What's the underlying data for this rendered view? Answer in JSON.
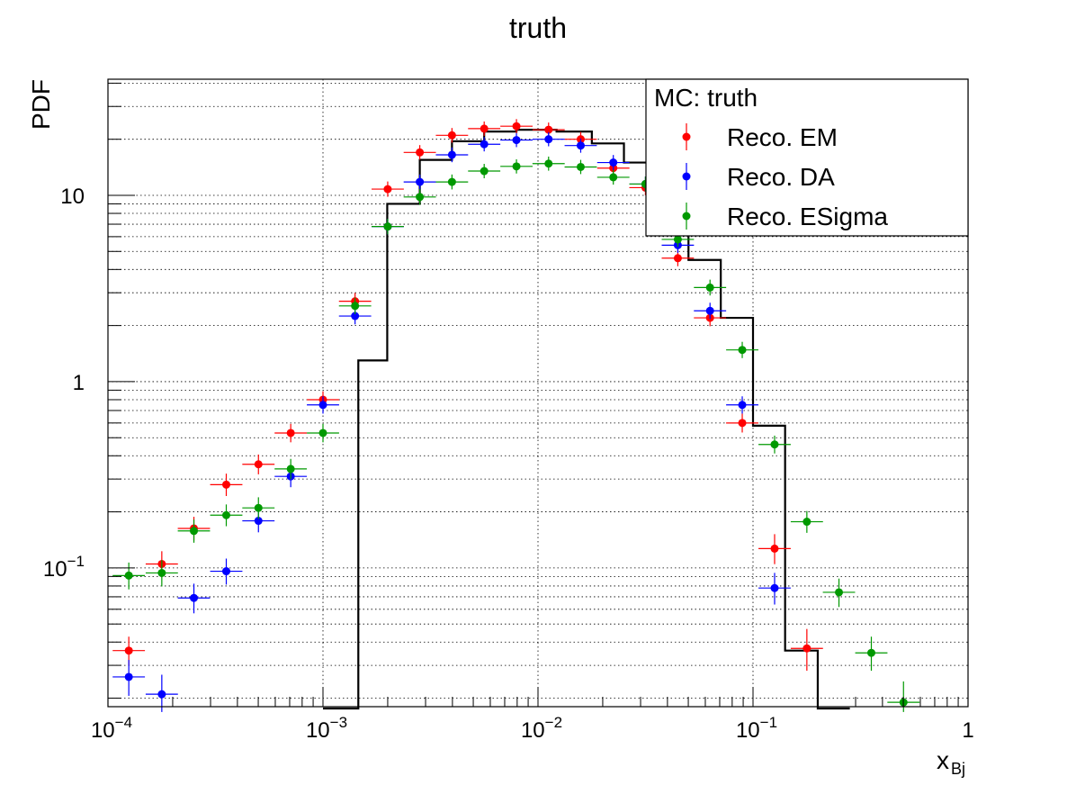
{
  "chart_data": {
    "type": "scatter",
    "title": "truth",
    "xlabel": "x",
    "xlabel_sub": "Bj",
    "ylabel": "PDF",
    "xscale": "log",
    "yscale": "log",
    "xlim": [
      0.0001,
      1
    ],
    "ylim": [
      0.018,
      42
    ],
    "grid": true,
    "legend": {
      "placement": "top-right",
      "header": "MC: truth",
      "entries": [
        "Reco. EM",
        "Reco. DA",
        "Reco. ESigma"
      ]
    },
    "x_ticks": [
      {
        "base": "10",
        "exp": "−4",
        "value": 0.0001
      },
      {
        "base": "10",
        "exp": "−3",
        "value": 0.001
      },
      {
        "base": "10",
        "exp": "−2",
        "value": 0.01
      },
      {
        "base": "10",
        "exp": "−1",
        "value": 0.1
      },
      {
        "base": "1",
        "exp": "",
        "value": 1
      }
    ],
    "y_ticks": [
      {
        "base": "10",
        "exp": "−1",
        "value": 0.1
      },
      {
        "base": "1",
        "exp": "",
        "value": 1
      },
      {
        "base": "10",
        "exp": "",
        "value": 10
      }
    ],
    "truth_histogram": {
      "color": "#000000",
      "bins": [
        {
          "lo": 0.001,
          "hi": 0.00146,
          "value": 0
        },
        {
          "lo": 0.00146,
          "hi": 0.00199,
          "value": 1.3
        },
        {
          "lo": 0.00199,
          "hi": 0.00282,
          "value": 9.0
        },
        {
          "lo": 0.00282,
          "hi": 0.00398,
          "value": 15.5
        },
        {
          "lo": 0.00398,
          "hi": 0.00562,
          "value": 19.5
        },
        {
          "lo": 0.00562,
          "hi": 0.00794,
          "value": 22.0
        },
        {
          "lo": 0.00794,
          "hi": 0.0122,
          "value": 22.5
        },
        {
          "lo": 0.0122,
          "hi": 0.0178,
          "value": 22.0
        },
        {
          "lo": 0.0178,
          "hi": 0.0251,
          "value": 19.0
        },
        {
          "lo": 0.0251,
          "hi": 0.0355,
          "value": 15.0
        },
        {
          "lo": 0.0355,
          "hi": 0.0501,
          "value": 11.0
        },
        {
          "lo": 0.0501,
          "hi": 0.0708,
          "value": 4.5
        },
        {
          "lo": 0.0708,
          "hi": 0.1,
          "value": 2.2
        },
        {
          "lo": 0.1,
          "hi": 0.141,
          "value": 0.58
        },
        {
          "lo": 0.141,
          "hi": 0.2,
          "value": 0.036
        },
        {
          "lo": 0.2,
          "hi": 0.282,
          "value": 0
        }
      ]
    },
    "series": [
      {
        "name": "Reco. EM",
        "color": "#ff0000",
        "points": [
          {
            "x": 0.000125,
            "y": 0.036,
            "ey": 0.004
          },
          {
            "x": 0.000178,
            "y": 0.105,
            "ey": 0.01
          },
          {
            "x": 0.000251,
            "y": 0.163,
            "ey": 0.013
          },
          {
            "x": 0.000355,
            "y": 0.28,
            "ey": 0.02
          },
          {
            "x": 0.000501,
            "y": 0.36,
            "ey": 0.02
          },
          {
            "x": 0.000708,
            "y": 0.53,
            "ey": 0.025
          },
          {
            "x": 0.001,
            "y": 0.8,
            "ey": 0.03
          },
          {
            "x": 0.00141,
            "y": 2.7,
            "ey": 0.1
          },
          {
            "x": 0.002,
            "y": 10.8,
            "ey": 0.3
          },
          {
            "x": 0.00282,
            "y": 17.0,
            "ey": 0.4
          },
          {
            "x": 0.00398,
            "y": 21.0,
            "ey": 0.5
          },
          {
            "x": 0.00562,
            "y": 22.8,
            "ey": 0.5
          },
          {
            "x": 0.00794,
            "y": 23.5,
            "ey": 0.5
          },
          {
            "x": 0.0112,
            "y": 22.5,
            "ey": 0.5
          },
          {
            "x": 0.0158,
            "y": 20.0,
            "ey": 0.5
          },
          {
            "x": 0.0224,
            "y": 14.0,
            "ey": 0.4
          },
          {
            "x": 0.0316,
            "y": 11.0,
            "ey": 0.3
          },
          {
            "x": 0.0447,
            "y": 4.6,
            "ey": 0.15
          },
          {
            "x": 0.0631,
            "y": 2.2,
            "ey": 0.08
          },
          {
            "x": 0.0891,
            "y": 0.6,
            "ey": 0.03
          },
          {
            "x": 0.126,
            "y": 0.127,
            "ey": 0.015
          },
          {
            "x": 0.178,
            "y": 0.037,
            "ey": 0.007
          }
        ]
      },
      {
        "name": "Reco. DA",
        "color": "#0000ff",
        "points": [
          {
            "x": 0.000125,
            "y": 0.026,
            "ey": 0.004
          },
          {
            "x": 0.000178,
            "y": 0.021,
            "ey": 0.004
          },
          {
            "x": 0.000251,
            "y": 0.069,
            "ey": 0.008
          },
          {
            "x": 0.000355,
            "y": 0.096,
            "ey": 0.009
          },
          {
            "x": 0.000501,
            "y": 0.179,
            "ey": 0.013
          },
          {
            "x": 0.000708,
            "y": 0.31,
            "ey": 0.02
          },
          {
            "x": 0.001,
            "y": 0.75,
            "ey": 0.03
          },
          {
            "x": 0.00141,
            "y": 2.25,
            "ey": 0.08
          },
          {
            "x": 0.002,
            "y": 6.8,
            "ey": 0.2
          },
          {
            "x": 0.00282,
            "y": 11.8,
            "ey": 0.3
          },
          {
            "x": 0.00398,
            "y": 16.5,
            "ey": 0.4
          },
          {
            "x": 0.00562,
            "y": 18.8,
            "ey": 0.4
          },
          {
            "x": 0.00794,
            "y": 19.8,
            "ey": 0.4
          },
          {
            "x": 0.0112,
            "y": 20.0,
            "ey": 0.4
          },
          {
            "x": 0.0158,
            "y": 18.5,
            "ey": 0.4
          },
          {
            "x": 0.0224,
            "y": 15.0,
            "ey": 0.4
          },
          {
            "x": 0.0316,
            "y": 11.5,
            "ey": 0.3
          },
          {
            "x": 0.0447,
            "y": 5.4,
            "ey": 0.15
          },
          {
            "x": 0.0631,
            "y": 2.4,
            "ey": 0.08
          },
          {
            "x": 0.0891,
            "y": 0.75,
            "ey": 0.03
          },
          {
            "x": 0.126,
            "y": 0.078,
            "ey": 0.01
          }
        ]
      },
      {
        "name": "Reco. ESigma",
        "color": "#009900",
        "points": [
          {
            "x": 0.000125,
            "y": 0.091,
            "ey": 0.009
          },
          {
            "x": 0.000178,
            "y": 0.094,
            "ey": 0.009
          },
          {
            "x": 0.000251,
            "y": 0.158,
            "ey": 0.012
          },
          {
            "x": 0.000355,
            "y": 0.192,
            "ey": 0.013
          },
          {
            "x": 0.000501,
            "y": 0.21,
            "ey": 0.014
          },
          {
            "x": 0.000708,
            "y": 0.34,
            "ey": 0.02
          },
          {
            "x": 0.001,
            "y": 0.53,
            "ey": 0.025
          },
          {
            "x": 0.00141,
            "y": 2.55,
            "ey": 0.09
          },
          {
            "x": 0.002,
            "y": 6.8,
            "ey": 0.2
          },
          {
            "x": 0.00282,
            "y": 9.8,
            "ey": 0.3
          },
          {
            "x": 0.00398,
            "y": 11.8,
            "ey": 0.3
          },
          {
            "x": 0.00562,
            "y": 13.5,
            "ey": 0.3
          },
          {
            "x": 0.00794,
            "y": 14.3,
            "ey": 0.3
          },
          {
            "x": 0.0112,
            "y": 14.8,
            "ey": 0.3
          },
          {
            "x": 0.0158,
            "y": 14.2,
            "ey": 0.3
          },
          {
            "x": 0.0224,
            "y": 12.5,
            "ey": 0.3
          },
          {
            "x": 0.0316,
            "y": 11.5,
            "ey": 0.3
          },
          {
            "x": 0.0447,
            "y": 5.8,
            "ey": 0.15
          },
          {
            "x": 0.0631,
            "y": 3.2,
            "ey": 0.1
          },
          {
            "x": 0.0891,
            "y": 1.48,
            "ey": 0.05
          },
          {
            "x": 0.126,
            "y": 0.46,
            "ey": 0.02
          },
          {
            "x": 0.178,
            "y": 0.177,
            "ey": 0.012
          },
          {
            "x": 0.251,
            "y": 0.074,
            "ey": 0.008
          },
          {
            "x": 0.355,
            "y": 0.035,
            "ey": 0.005
          },
          {
            "x": 0.501,
            "y": 0.019,
            "ey": 0.004
          }
        ]
      }
    ]
  }
}
